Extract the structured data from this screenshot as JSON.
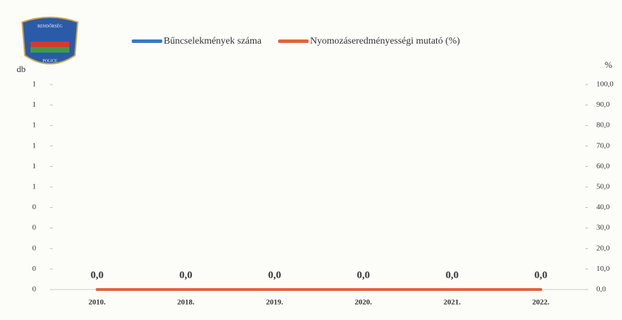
{
  "logo": {
    "top": "RENDŐRSÉG",
    "bottom": "POLICE"
  },
  "chart_data": {
    "type": "bar",
    "categories": [
      "2010.",
      "2018.",
      "2019.",
      "2020.",
      "2021.",
      "2022."
    ],
    "ylabel": "db",
    "y2label": "%",
    "ylim": [
      0,
      1
    ],
    "yticks": [
      {
        "value": 0,
        "label": "0"
      },
      {
        "value": 0.1,
        "label": "0"
      },
      {
        "value": 0.2,
        "label": "0"
      },
      {
        "value": 0.3,
        "label": "0"
      },
      {
        "value": 0.4,
        "label": "0"
      },
      {
        "value": 0.5,
        "label": "1"
      },
      {
        "value": 0.6,
        "label": "1"
      },
      {
        "value": 0.7,
        "label": "1"
      },
      {
        "value": 0.8,
        "label": "1"
      },
      {
        "value": 0.9,
        "label": "1"
      },
      {
        "value": 1,
        "label": "1"
      }
    ],
    "y2lim": [
      0,
      100
    ],
    "y2ticks": [
      {
        "value": 0,
        "label": "0,0"
      },
      {
        "value": 10,
        "label": "10,0"
      },
      {
        "value": 20,
        "label": "20,0"
      },
      {
        "value": 30,
        "label": "30,0"
      },
      {
        "value": 40,
        "label": "40,0"
      },
      {
        "value": 50,
        "label": "50,0"
      },
      {
        "value": 60,
        "label": "60,0"
      },
      {
        "value": 70,
        "label": "70,0"
      },
      {
        "value": 80,
        "label": "80,0"
      },
      {
        "value": 90,
        "label": "90,0"
      },
      {
        "value": 100,
        "label": "100,0"
      }
    ],
    "series": [
      {
        "name": "Bűncselekmények száma",
        "color": "#3a78c0",
        "type": "bar",
        "values": [
          0,
          0,
          0,
          0,
          0,
          0
        ]
      },
      {
        "name": "Nyomozáseredményességi mutató (%)",
        "color": "#e0623e",
        "type": "line",
        "axis": "y2",
        "values": [
          0,
          0,
          0,
          0,
          0,
          0
        ],
        "value_labels": [
          "0,0",
          "0,0",
          "0,0",
          "0,0",
          "0,0",
          "0,0"
        ]
      }
    ]
  }
}
